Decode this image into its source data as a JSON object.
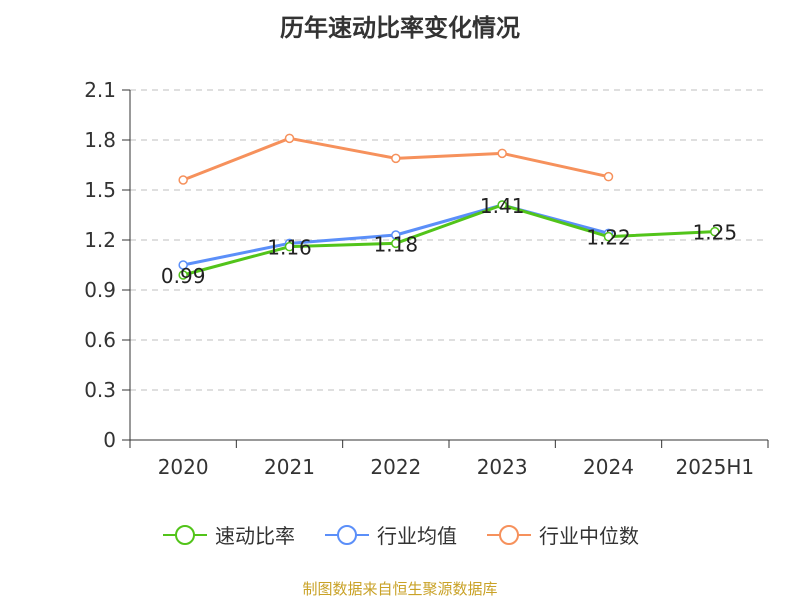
{
  "chart_data": {
    "type": "line",
    "title": "历年速动比率变化情况",
    "categories": [
      "2020",
      "2021",
      "2022",
      "2023",
      "2024",
      "2025H1"
    ],
    "ylim": [
      0,
      2.1
    ],
    "yticks": [
      "0",
      "0.3",
      "0.6",
      "0.9",
      "1.2",
      "1.5",
      "1.8",
      "2.1"
    ],
    "grid": true,
    "legend_position": "bottom",
    "series": [
      {
        "name": "速动比率",
        "color": "#52c41a",
        "values": [
          0.99,
          1.16,
          1.18,
          1.41,
          1.22,
          1.25
        ],
        "labels": [
          "0.99",
          "1.16",
          "1.18",
          "1.41",
          "1.22",
          "1.25"
        ]
      },
      {
        "name": "行业均值",
        "color": "#5b8ff9",
        "values": [
          1.05,
          1.18,
          1.23,
          1.41,
          1.24,
          null
        ]
      },
      {
        "name": "行业中位数",
        "color": "#f6915c",
        "values": [
          1.56,
          1.81,
          1.69,
          1.72,
          1.58,
          null
        ]
      }
    ]
  },
  "source": "制图数据来自恒生聚源数据库"
}
